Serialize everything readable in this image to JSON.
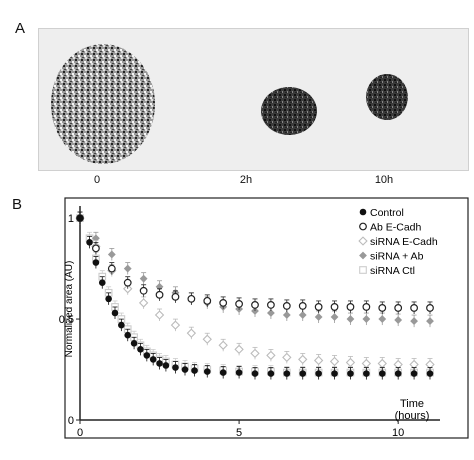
{
  "panel_a": {
    "letter": "A",
    "time_labels": [
      "0",
      "2h",
      "10h"
    ]
  },
  "panel_b": {
    "letter": "B"
  },
  "chart_data": {
    "type": "scatter",
    "title": "",
    "xlabel": "Time\n(hours)",
    "ylabel": "Normalized area (AU)",
    "xlim": [
      0,
      11
    ],
    "ylim": [
      0,
      1.05
    ],
    "x_ticks": [
      0,
      5,
      10
    ],
    "x_tick_labels": [
      "0",
      "5",
      "10"
    ],
    "y_ticks": [
      0,
      0.5,
      1
    ],
    "y_tick_labels": [
      "0",
      "0.5",
      "1"
    ],
    "grid": false,
    "legend_position": "top-right",
    "series": [
      {
        "name": "Control",
        "marker": "filled-circle",
        "color": "#111111",
        "x": [
          0,
          0.3,
          0.5,
          0.7,
          0.9,
          1.1,
          1.3,
          1.5,
          1.7,
          1.9,
          2.1,
          2.3,
          2.5,
          2.7,
          3.0,
          3.3,
          3.6,
          4.0,
          4.5,
          5.0,
          5.5,
          6.0,
          6.5,
          7.0,
          7.5,
          8.0,
          8.5,
          9.0,
          9.5,
          10.0,
          10.5,
          11.0
        ],
        "y": [
          1.0,
          0.88,
          0.78,
          0.68,
          0.6,
          0.53,
          0.47,
          0.42,
          0.38,
          0.35,
          0.32,
          0.3,
          0.28,
          0.27,
          0.26,
          0.25,
          0.245,
          0.24,
          0.235,
          0.235,
          0.23,
          0.23,
          0.23,
          0.23,
          0.23,
          0.23,
          0.23,
          0.23,
          0.23,
          0.23,
          0.23,
          0.23
        ]
      },
      {
        "name": "Ab E-Cadh",
        "marker": "open-circle",
        "color": "#222222",
        "x": [
          0,
          0.5,
          1.0,
          1.5,
          2.0,
          2.5,
          3.0,
          3.5,
          4.0,
          4.5,
          5.0,
          5.5,
          6.0,
          6.5,
          7.0,
          7.5,
          8.0,
          8.5,
          9.0,
          9.5,
          10.0,
          10.5,
          11.0
        ],
        "y": [
          1.0,
          0.85,
          0.75,
          0.68,
          0.64,
          0.62,
          0.61,
          0.6,
          0.59,
          0.58,
          0.575,
          0.57,
          0.57,
          0.565,
          0.565,
          0.56,
          0.56,
          0.56,
          0.56,
          0.555,
          0.555,
          0.555,
          0.555
        ]
      },
      {
        "name": "siRNA E-Cadh",
        "marker": "open-diamond",
        "color": "#bbbbbb",
        "x": [
          0,
          0.5,
          1.0,
          1.5,
          2.0,
          2.5,
          3.0,
          3.5,
          4.0,
          4.5,
          5.0,
          5.5,
          6.0,
          6.5,
          7.0,
          7.5,
          8.0,
          8.5,
          9.0,
          9.5,
          10.0,
          10.5,
          11.0
        ],
        "y": [
          1.0,
          0.86,
          0.74,
          0.65,
          0.58,
          0.52,
          0.47,
          0.43,
          0.4,
          0.37,
          0.35,
          0.33,
          0.32,
          0.31,
          0.3,
          0.295,
          0.29,
          0.285,
          0.28,
          0.28,
          0.275,
          0.275,
          0.275
        ]
      },
      {
        "name": "siRNA + Ab",
        "marker": "filled-diamond",
        "color": "#999999",
        "x": [
          0,
          0.5,
          1.0,
          1.5,
          2.0,
          2.5,
          3.0,
          3.5,
          4.0,
          4.5,
          5.0,
          5.5,
          6.0,
          6.5,
          7.0,
          7.5,
          8.0,
          8.5,
          9.0,
          9.5,
          10.0,
          10.5,
          11.0
        ],
        "y": [
          1.0,
          0.9,
          0.82,
          0.75,
          0.7,
          0.66,
          0.63,
          0.6,
          0.58,
          0.56,
          0.55,
          0.54,
          0.53,
          0.52,
          0.52,
          0.51,
          0.51,
          0.5,
          0.5,
          0.5,
          0.495,
          0.49,
          0.49
        ]
      },
      {
        "name": "siRNA Ctl",
        "marker": "open-square",
        "color": "#cccccc",
        "x": [
          0,
          0.3,
          0.5,
          0.7,
          0.9,
          1.1,
          1.3,
          1.5,
          1.7,
          1.9,
          2.1,
          2.3,
          2.5,
          2.7,
          3.0,
          3.3,
          3.6,
          4.0,
          4.5,
          5.0,
          5.5,
          6.0,
          6.5,
          7.0,
          7.5,
          8.0,
          8.5,
          9.0,
          9.5,
          10.0,
          10.5,
          11.0
        ],
        "y": [
          1.0,
          0.9,
          0.8,
          0.71,
          0.63,
          0.56,
          0.5,
          0.45,
          0.41,
          0.37,
          0.34,
          0.32,
          0.3,
          0.29,
          0.275,
          0.265,
          0.255,
          0.25,
          0.245,
          0.24,
          0.24,
          0.24,
          0.235,
          0.235,
          0.235,
          0.235,
          0.235,
          0.235,
          0.235,
          0.235,
          0.235,
          0.235
        ]
      }
    ]
  }
}
